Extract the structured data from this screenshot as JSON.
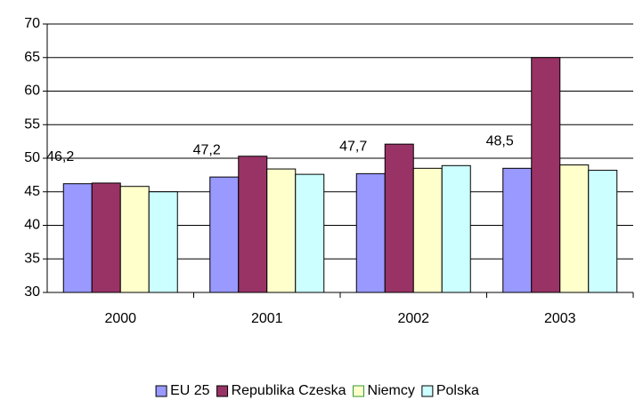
{
  "chart_data": {
    "type": "bar",
    "categories": [
      "2000",
      "2001",
      "2002",
      "2003"
    ],
    "series": [
      {
        "name": "EU 25",
        "color": "#9999ff",
        "values": [
          46.2,
          47.2,
          47.7,
          48.5
        ],
        "value_labels": [
          "46,2",
          "47,2",
          "47,7",
          "48,5"
        ]
      },
      {
        "name": "Republika Czeska",
        "color": "#993366",
        "values": [
          46.3,
          50.3,
          52.1,
          65.0
        ]
      },
      {
        "name": "Niemcy",
        "color": "#ffffcc",
        "values": [
          45.8,
          48.4,
          48.5,
          49.0
        ]
      },
      {
        "name": "Polska",
        "color": "#ccffff",
        "values": [
          45.0,
          47.6,
          48.9,
          48.2
        ]
      }
    ],
    "ylim": [
      30,
      70
    ],
    "yticks": [
      30,
      35,
      40,
      45,
      50,
      55,
      60,
      65,
      70
    ],
    "grid": true,
    "legend": "bottom"
  }
}
